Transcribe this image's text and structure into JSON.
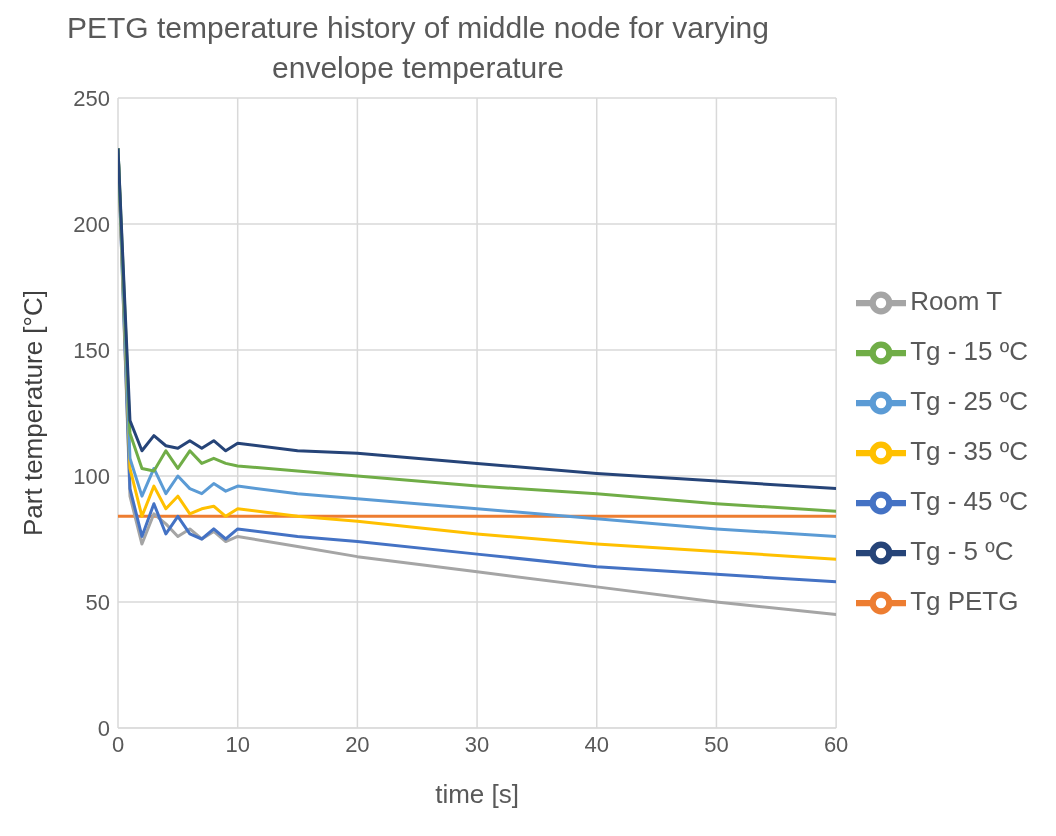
{
  "chart_data": {
    "type": "line",
    "title": "PETG temperature history of middle node for varying envelope temperature",
    "xlabel": "time [s]",
    "ylabel": "Part temperature [°C]",
    "xlim": [
      0,
      60
    ],
    "xticks": [
      0,
      10,
      20,
      30,
      40,
      50,
      60
    ],
    "ylim": [
      0,
      250
    ],
    "yticks": [
      0,
      50,
      100,
      150,
      200,
      250
    ],
    "grid": true,
    "legend": "right",
    "marker": "none",
    "line_style": "solid",
    "x": [
      0,
      1,
      2,
      3,
      4,
      5,
      6,
      7,
      8,
      9,
      10,
      15,
      20,
      30,
      40,
      50,
      60
    ],
    "series": [
      {
        "name": "Tg PETG",
        "color": "#ed7d31",
        "x": [
          0,
          60
        ],
        "values": [
          84,
          84
        ]
      },
      {
        "name": "Room T",
        "color": "#a5a5a5",
        "values": [
          230,
          92,
          73,
          85,
          81,
          76,
          79,
          75,
          78,
          74,
          76,
          72,
          68,
          62,
          56,
          50,
          45
        ]
      },
      {
        "name": "Tg - 45 ºC",
        "color": "#4472c4",
        "values": [
          230,
          95,
          76,
          89,
          77,
          84,
          77,
          75,
          79,
          75,
          79,
          76,
          74,
          69,
          64,
          61,
          58
        ]
      },
      {
        "name": "Tg - 35 ºC",
        "color": "#ffc000",
        "values": [
          230,
          103,
          84,
          96,
          87,
          92,
          85,
          87,
          88,
          84,
          87,
          84,
          82,
          77,
          73,
          70,
          67
        ]
      },
      {
        "name": "Tg - 25 ºC",
        "color": "#5b9bd5",
        "values": [
          230,
          107,
          92,
          103,
          93,
          100,
          95,
          93,
          97,
          94,
          96,
          93,
          91,
          87,
          83,
          79,
          76
        ]
      },
      {
        "name": "Tg - 15 ºC",
        "color": "#70ad47",
        "values": [
          230,
          117,
          103,
          102,
          110,
          103,
          110,
          105,
          107,
          105,
          104,
          102,
          100,
          96,
          93,
          89,
          86
        ]
      },
      {
        "name": "Tg - 5 ºC",
        "color": "#264478",
        "values": [
          230,
          122,
          110,
          116,
          112,
          111,
          114,
          111,
          114,
          110,
          113,
          110,
          109,
          105,
          101,
          98,
          95
        ]
      }
    ]
  }
}
